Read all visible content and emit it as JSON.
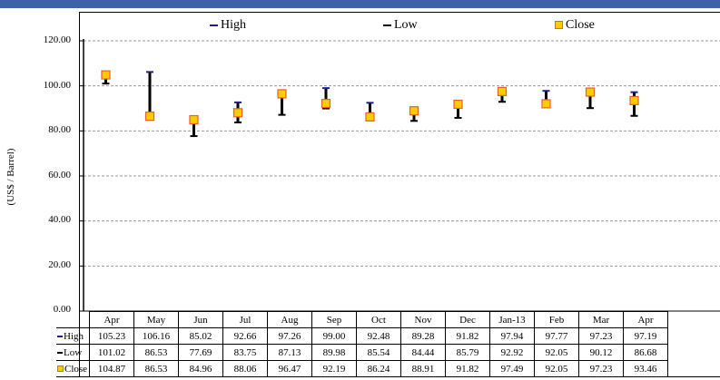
{
  "chart_data": {
    "type": "high-low-close",
    "categories": [
      "Apr",
      "May",
      "Jun",
      "Jul",
      "Aug",
      "Sep",
      "Oct",
      "Nov",
      "Dec",
      "Jan-13",
      "Feb",
      "Mar",
      "Apr"
    ],
    "series": [
      {
        "name": "High",
        "values": [
          105.23,
          106.16,
          85.02,
          92.66,
          97.26,
          99.0,
          92.48,
          89.28,
          91.82,
          97.94,
          97.77,
          97.23,
          97.19
        ]
      },
      {
        "name": "Low",
        "values": [
          101.02,
          86.53,
          77.69,
          83.75,
          87.13,
          89.98,
          85.54,
          84.44,
          85.79,
          92.92,
          92.05,
          90.12,
          86.68
        ]
      },
      {
        "name": "Close",
        "values": [
          104.87,
          86.53,
          84.96,
          88.06,
          96.47,
          92.19,
          86.24,
          88.91,
          91.82,
          97.49,
          92.05,
          97.23,
          93.46
        ]
      }
    ],
    "ylabel": "(US$ / Barrel)",
    "ylim": [
      0,
      120
    ],
    "yticks": [
      "0.00",
      "20.00",
      "40.00",
      "60.00",
      "80.00",
      "100.00",
      "120.00"
    ],
    "grid": true,
    "legend_position": "top",
    "data_table": true,
    "colors": {
      "high": "#1f1f8f",
      "low": "#000000",
      "close_fill": "#ffcc00",
      "close_border": "#e8602c",
      "grid": "#999999",
      "topbar": "#3d62a8"
    }
  }
}
